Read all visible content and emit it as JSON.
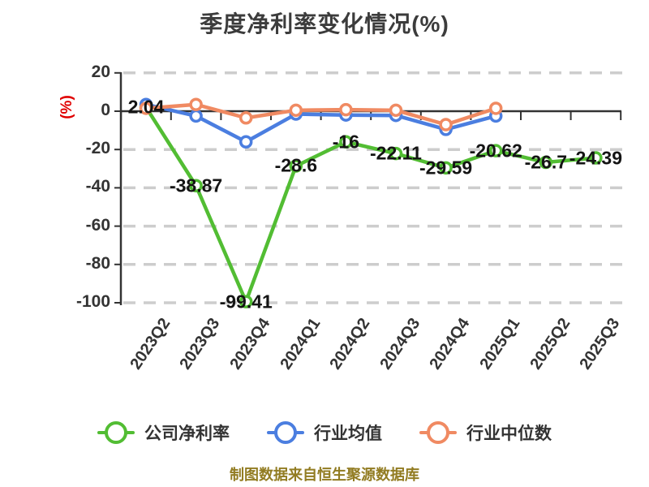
{
  "title": "季度净利率变化情况(%)",
  "y_axis_unit": "(%)",
  "footer": {
    "text": "制图数据来自恒生聚源数据库"
  },
  "colors": {
    "company_green": "#52bd33",
    "industry_mean_blue": "#4b7ee0",
    "industry_median_orange": "#f08a62",
    "grid": "#cdcdcd",
    "axis": "#333333",
    "point_label_text": "#141414",
    "tick_text": "#333333",
    "title_text": "#3c3c3c",
    "unit_text": "#e00000",
    "footer_text": "#927c22"
  },
  "legend": {
    "position": "bottom",
    "items": [
      {
        "label": "公司净利率"
      },
      {
        "label": "行业均值"
      },
      {
        "label": "行业中位数"
      }
    ]
  },
  "chart_data": {
    "type": "line",
    "title": "季度净利率变化情况(%)",
    "ylabel": "(%)",
    "categories": [
      "2023Q2",
      "2023Q3",
      "2023Q4",
      "2024Q1",
      "2024Q2",
      "2024Q3",
      "2024Q4",
      "2025Q1",
      "2025Q2",
      "2025Q3"
    ],
    "yticks": [
      20,
      0,
      -20,
      -40,
      -60,
      -80,
      -100
    ],
    "ylim": [
      -100,
      20
    ],
    "grid": "dashed-horizontal",
    "legend_position": "bottom",
    "series": [
      {
        "name": "公司净利率",
        "color": "#52bd33",
        "values": [
          2.04,
          -38.87,
          -99.41,
          -28.6,
          -16,
          -22.11,
          -29.59,
          -20.62,
          -26.7,
          -24.39
        ],
        "labels": [
          "2.04",
          "-38.87",
          "-99.41",
          "-28.6",
          "-16",
          "-22.11",
          "-29.59",
          "-20.62",
          "-26.7",
          "-24.39"
        ],
        "show_point_labels": true
      },
      {
        "name": "行业均值",
        "color": "#4b7ee0",
        "values": [
          3.5,
          -2.5,
          -16,
          -1.5,
          -2,
          -2.2,
          -9.5,
          -2.5
        ],
        "show_point_labels": false,
        "values_estimated": true
      },
      {
        "name": "行业中位数",
        "color": "#f08a62",
        "values": [
          1.5,
          3.5,
          -3.5,
          0.5,
          0.8,
          0.5,
          -7,
          1.5
        ],
        "show_point_labels": false,
        "values_estimated": true
      }
    ]
  }
}
